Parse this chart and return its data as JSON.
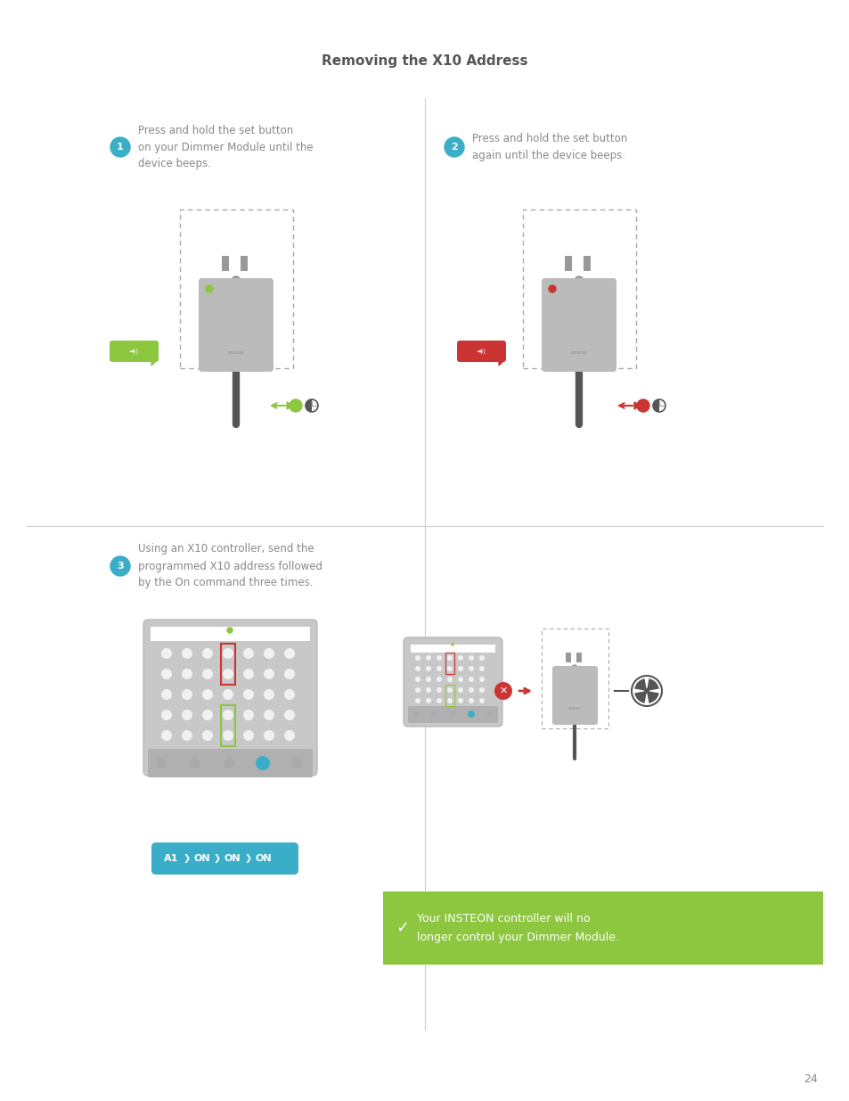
{
  "title": "Removing the X10 Address",
  "title_fontsize": 11,
  "title_color": "#555555",
  "bg_color": "#ffffff",
  "step1_circle_color": "#3aaec8",
  "step1_num": "1",
  "step1_text": "Press and hold the set button\non your Dimmer Module until the\ndevice beeps.",
  "step2_circle_color": "#3aaec8",
  "step2_num": "2",
  "step2_text": "Press and hold the set button\nagain until the device beeps.",
  "step3_circle_color": "#3aaec8",
  "step3_num": "3",
  "step3_text": "Using an X10 controller, send the\nprogrammed X10 address followed\nby the On command three times.",
  "text_color": "#888888",
  "divider_color": "#cccccc",
  "green_bar_color": "#8dc63f",
  "green_bar_text": "Your INSTEON controller will no\nlonger control your Dimmer Module.",
  "green_bar_text_color": "#ffffff",
  "page_number": "24",
  "plug_body_color": "#bbbbbb",
  "plug_cord_color": "#555555",
  "dashed_rect_color": "#aaaaaa",
  "green_indicator_color": "#8dc63f",
  "red_indicator_color": "#cc3333",
  "green_speech_color": "#8dc63f",
  "red_speech_color": "#cc3333",
  "arrow_green_color": "#8dc63f",
  "arrow_red_color": "#cc3333",
  "seq_label_bg": "#3aaec8",
  "fan_circle_color": "#555555",
  "no_link_color": "#cc3333"
}
